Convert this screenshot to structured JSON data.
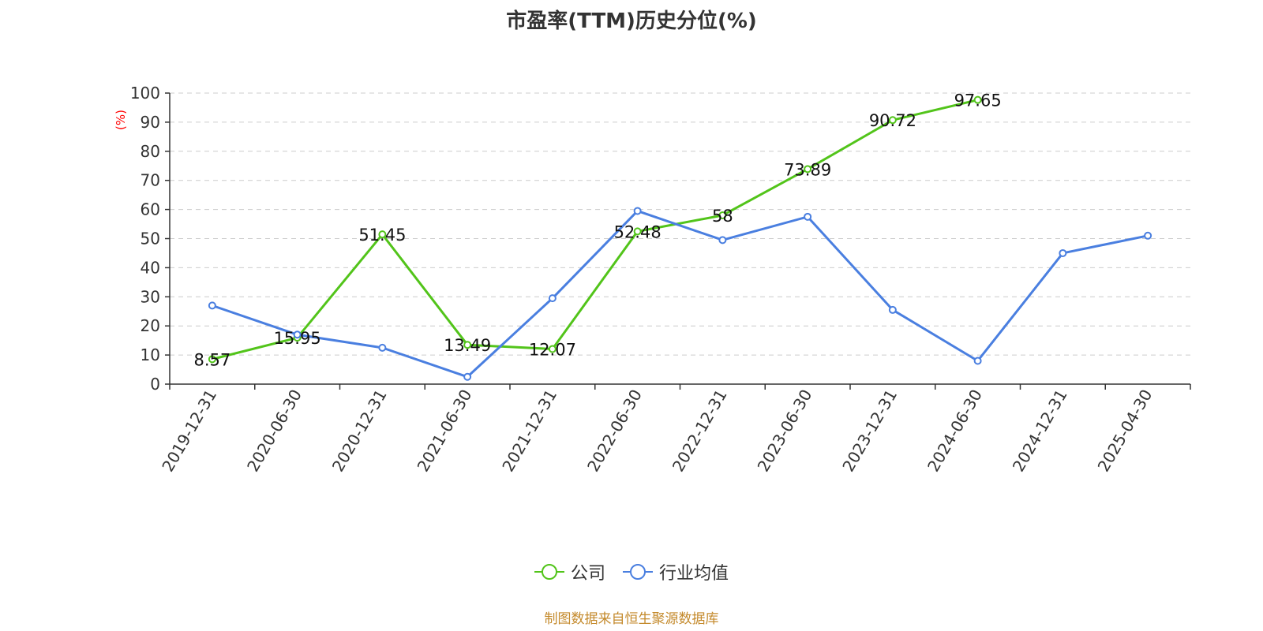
{
  "colors": {
    "company": "#52c41a",
    "industry": "#4a7fe0",
    "yunit": "#ff0000",
    "source": "#c48a2c"
  },
  "footer": {
    "source": "制图数据来自恒生聚源数据库"
  },
  "chart_data": {
    "type": "line",
    "title": "市盈率(TTM)历史分位(%)",
    "ylabel": "(%)",
    "xlabel": "",
    "categories": [
      "2019-12-31",
      "2020-06-30",
      "2020-12-31",
      "2021-06-30",
      "2021-12-31",
      "2022-06-30",
      "2022-12-31",
      "2023-06-30",
      "2023-12-31",
      "2024-06-30",
      "2024-12-31",
      "2025-04-30"
    ],
    "ylim": [
      0,
      100
    ],
    "yticks": [
      0,
      10,
      20,
      30,
      40,
      50,
      60,
      70,
      80,
      90,
      100
    ],
    "grid": true,
    "legend_position": "bottom",
    "series": [
      {
        "name": "公司",
        "values": [
          8.57,
          15.95,
          51.45,
          13.49,
          12.07,
          52.48,
          58,
          73.89,
          90.72,
          97.65,
          null,
          null
        ],
        "show_labels": true
      },
      {
        "name": "行业均值",
        "values": [
          27,
          17,
          12.5,
          2.5,
          29.5,
          59.5,
          49.5,
          57.5,
          25.5,
          8,
          45,
          51
        ],
        "show_labels": false
      }
    ]
  }
}
